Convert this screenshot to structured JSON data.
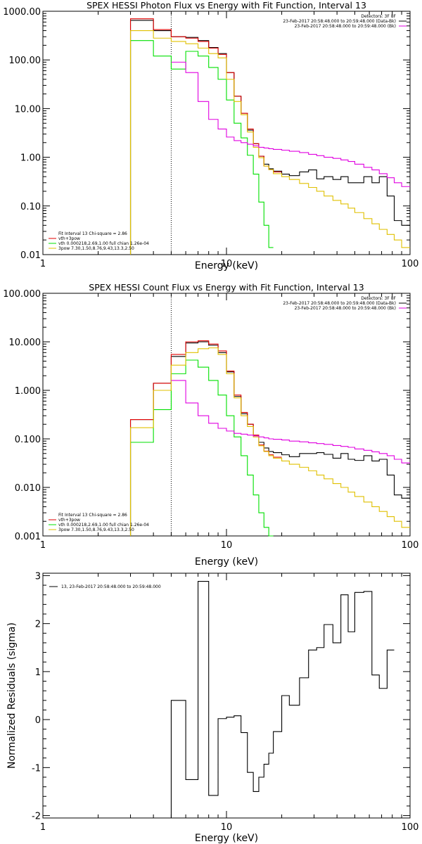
{
  "chart_data": [
    {
      "type": "line",
      "title": "SPEX HESSI Photon Flux vs Energy with Fit Function, Interval 13",
      "xlabel": "Energy (keV)",
      "ylabel": "",
      "x_scale": "log",
      "y_scale": "log",
      "xlim": [
        1,
        100
      ],
      "ylim": [
        0.01,
        1000
      ],
      "x_ticks": [
        {
          "v": 1,
          "label": "1"
        },
        {
          "v": 10,
          "label": "10"
        },
        {
          "v": 100,
          "label": "100"
        }
      ],
      "y_ticks": [
        {
          "v": 1000,
          "label": "1000.00"
        },
        {
          "v": 100,
          "label": "100.00"
        },
        {
          "v": 10,
          "label": "10.00"
        },
        {
          "v": 1,
          "label": "1.00"
        },
        {
          "v": 0.1,
          "label": "0.10"
        },
        {
          "v": 0.01,
          "label": "0.01"
        }
      ],
      "vline_x": 5,
      "legend_top": [
        "Detectors: 3F 8F",
        "23-Feb-2017 20:58:48.000 to 20:59:48.000 (Data-Bk)",
        "23-Feb-2017 20:58:48.000 to 20:59:48.000 (Bk)"
      ],
      "legend_bottom": [
        "Fit Interval 13   Chi-square = 2.86",
        "vth+3pow",
        "vth 0.000218,2.69,1.00   full chian 1.26e-04",
        "3pow 7.30,1.50,8.76,9.43,13.3,2.50"
      ],
      "edges": [
        3,
        4,
        5,
        6,
        7,
        8,
        9,
        10,
        11,
        12,
        13,
        14,
        15,
        16,
        17,
        18,
        20,
        22,
        25,
        28,
        31,
        34,
        38,
        42,
        46,
        50,
        56,
        62,
        68,
        75,
        82,
        90,
        100
      ],
      "series": [
        {
          "name": "Data-Bk",
          "color": "#000000",
          "values": [
            650,
            400,
            300,
            290,
            250,
            180,
            135,
            55,
            18,
            8,
            3.6,
            1.9,
            1.05,
            0.72,
            0.58,
            0.52,
            0.45,
            0.42,
            0.5,
            0.55,
            0.36,
            0.4,
            0.35,
            0.4,
            0.3,
            0.3,
            0.4,
            0.3,
            0.4,
            0.16,
            0.05,
            0.04
          ]
        },
        {
          "name": "vth+3pow",
          "color": "#e00000",
          "values": [
            700,
            420,
            300,
            280,
            240,
            175,
            130,
            55,
            18,
            8,
            3.8,
            1.9,
            1.05,
            0.66,
            0.56,
            0.5
          ]
        },
        {
          "name": "vth",
          "color": "#00e000",
          "values": [
            250,
            120,
            65,
            150,
            120,
            70,
            40,
            15,
            5,
            2.5,
            1.1,
            0.45,
            0.12,
            0.04,
            0.014
          ]
        },
        {
          "name": "3pow",
          "color": "#e0c000",
          "values": [
            400,
            280,
            240,
            215,
            175,
            135,
            110,
            40,
            14,
            7.5,
            3.3,
            1.6,
            0.98,
            0.66,
            0.56,
            0.46,
            0.4,
            0.35,
            0.29,
            0.24,
            0.2,
            0.16,
            0.13,
            0.11,
            0.09,
            0.073,
            0.055,
            0.043,
            0.033,
            0.026,
            0.02,
            0.014
          ]
        },
        {
          "name": "Bk",
          "color": "#e000e0",
          "values": [
            null,
            null,
            90,
            55,
            14,
            6,
            3.8,
            2.6,
            2.2,
            2.0,
            1.85,
            1.72,
            1.6,
            1.55,
            1.5,
            1.45,
            1.4,
            1.33,
            1.25,
            1.15,
            1.08,
            1.0,
            0.95,
            0.88,
            0.82,
            0.72,
            0.62,
            0.55,
            0.46,
            0.38,
            0.3,
            0.25
          ]
        }
      ]
    },
    {
      "type": "line",
      "title": "SPEX HESSI Count Flux vs Energy with Fit Function, Interval 13",
      "xlabel": "Energy (keV)",
      "ylabel": "",
      "x_scale": "log",
      "y_scale": "log",
      "xlim": [
        1,
        100
      ],
      "ylim": [
        0.001,
        100
      ],
      "x_ticks": [
        {
          "v": 1,
          "label": "1"
        },
        {
          "v": 10,
          "label": "10"
        },
        {
          "v": 100,
          "label": "100"
        }
      ],
      "y_ticks": [
        {
          "v": 100,
          "label": "100.000"
        },
        {
          "v": 10,
          "label": "10.000"
        },
        {
          "v": 1,
          "label": "1.000"
        },
        {
          "v": 0.1,
          "label": "0.100"
        },
        {
          "v": 0.01,
          "label": "0.010"
        },
        {
          "v": 0.001,
          "label": "0.001"
        }
      ],
      "vline_x": 5,
      "legend_top": [
        "Detectors: 3F 8F",
        "23-Feb-2017 20:58:48.000 to 20:59:48.000 (Data-Bk)",
        "23-Feb-2017 20:58:48.000 to 20:59:48.000 (Bk)"
      ],
      "legend_bottom": [
        "Fit Interval 13   Chi-square = 2.86",
        "vth+3pow",
        "vth 0.000218,2.69,1.00   full chian 1.26e-04",
        "3pow 7.30,1.50,8.76,9.43,13.3,2.50"
      ],
      "edges": [
        3,
        4,
        5,
        6,
        7,
        8,
        9,
        10,
        11,
        12,
        13,
        14,
        15,
        16,
        17,
        18,
        20,
        22,
        25,
        28,
        31,
        34,
        38,
        42,
        46,
        50,
        56,
        62,
        68,
        75,
        82,
        90,
        100
      ],
      "series": [
        {
          "name": "Data-Bk",
          "color": "#000000",
          "values": [
            0.25,
            1.4,
            5.0,
            9.5,
            10.0,
            8.5,
            6.0,
            2.4,
            0.75,
            0.33,
            0.2,
            0.12,
            0.085,
            0.065,
            0.055,
            0.052,
            0.047,
            0.043,
            0.05,
            0.05,
            0.052,
            0.048,
            0.04,
            0.05,
            0.038,
            0.036,
            0.045,
            0.035,
            0.038,
            0.018,
            0.007,
            0.006
          ]
        },
        {
          "name": "vth+3pow",
          "color": "#e00000",
          "values": [
            0.25,
            1.4,
            5.5,
            10.0,
            10.5,
            9.0,
            6.5,
            2.5,
            0.8,
            0.35,
            0.2,
            0.12,
            0.075,
            0.056,
            0.047,
            0.042
          ]
        },
        {
          "name": "vth",
          "color": "#00e000",
          "values": [
            0.085,
            0.4,
            2.2,
            4.2,
            3.0,
            1.6,
            0.8,
            0.3,
            0.11,
            0.045,
            0.018,
            0.007,
            0.003,
            0.0015,
            0.001
          ]
        },
        {
          "name": "3pow",
          "color": "#e0c000",
          "values": [
            0.17,
            1.0,
            3.3,
            6.0,
            7.2,
            7.5,
            5.5,
            2.2,
            0.7,
            0.3,
            0.18,
            0.11,
            0.072,
            0.055,
            0.045,
            0.04,
            0.035,
            0.03,
            0.026,
            0.022,
            0.018,
            0.015,
            0.012,
            0.01,
            0.008,
            0.0065,
            0.005,
            0.004,
            0.0032,
            0.0025,
            0.002,
            0.0015
          ]
        },
        {
          "name": "Bk",
          "color": "#e000e0",
          "values": [
            null,
            null,
            1.6,
            0.55,
            0.3,
            0.21,
            0.165,
            0.145,
            0.13,
            0.125,
            0.12,
            0.115,
            0.11,
            0.105,
            0.1,
            0.098,
            0.095,
            0.09,
            0.087,
            0.083,
            0.08,
            0.077,
            0.073,
            0.07,
            0.067,
            0.062,
            0.058,
            0.054,
            0.05,
            0.045,
            0.038,
            0.032
          ]
        }
      ]
    },
    {
      "type": "line",
      "title": "",
      "xlabel": "Energy (keV)",
      "ylabel": "Normalized Residuals (sigma)",
      "x_scale": "log",
      "y_scale": "linear",
      "xlim": [
        1,
        100
      ],
      "ylim": [
        -2.05,
        3.05
      ],
      "x_ticks": [
        {
          "v": 1,
          "label": "1"
        },
        {
          "v": 10,
          "label": "10"
        },
        {
          "v": 100,
          "label": "100"
        }
      ],
      "y_ticks": [
        {
          "v": 3,
          "label": "3"
        },
        {
          "v": 2,
          "label": "2"
        },
        {
          "v": 1,
          "label": "1"
        },
        {
          "v": 0,
          "label": "0"
        },
        {
          "v": -1,
          "label": "-1"
        },
        {
          "v": -2,
          "label": "-2"
        }
      ],
      "legend_top_left": [
        "13, 23-Feb-2017 20:58:48.000 to 20:59:48.000"
      ],
      "edges": [
        5,
        6,
        7,
        8,
        9,
        10,
        11,
        12,
        13,
        14,
        15,
        16,
        17,
        18,
        20,
        22,
        25,
        28,
        31,
        34,
        38,
        42,
        46,
        50,
        56,
        62,
        68,
        75,
        82,
        90,
        100
      ],
      "series": [
        {
          "name": "",
          "color": "#000000",
          "values": [
            0.4,
            -1.25,
            2.88,
            -1.58,
            0.02,
            0.05,
            0.08,
            -0.27,
            -1.1,
            -1.5,
            -1.2,
            -0.93,
            -0.7,
            -0.25,
            0.5,
            0.3,
            0.87,
            1.45,
            1.5,
            1.98,
            1.6,
            2.6,
            1.83,
            2.65,
            2.67,
            0.93,
            0.65,
            1.45
          ]
        }
      ]
    }
  ]
}
